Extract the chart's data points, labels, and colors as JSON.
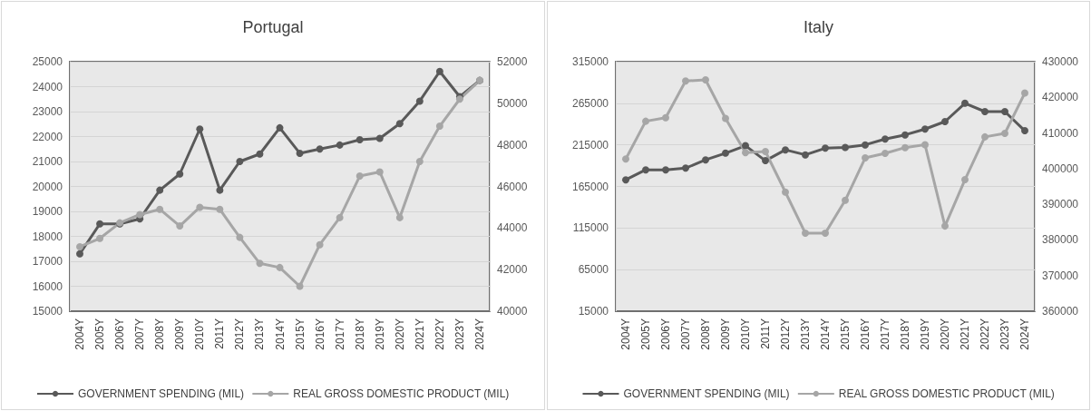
{
  "chart_data": [
    {
      "type": "line",
      "title": "Portugal",
      "categories": [
        "2004Y",
        "2005Y",
        "2006Y",
        "2007Y",
        "2008Y",
        "2009Y",
        "2010Y",
        "2011Y",
        "2012Y",
        "2013Y",
        "2014Y",
        "2015Y",
        "2016Y",
        "2017Y",
        "2018Y",
        "2019Y",
        "2020Y",
        "2021Y",
        "2022Y",
        "2023Y",
        "2024Y"
      ],
      "series": [
        {
          "name": "GOVERNMENT SPENDING (MIL)",
          "color": "#595959",
          "values": [
            17300,
            18500,
            18500,
            18700,
            19850,
            20500,
            22300,
            19850,
            21000,
            21300,
            22350,
            21330,
            21500,
            21660,
            21870,
            21930,
            22520,
            23420,
            24610,
            23600,
            24250
          ]
        },
        {
          "name": "REAL GROSS DOMESTIC PRODUCT (MIL)",
          "color": "#a6a6a6",
          "axis": "y2",
          "values": [
            43100,
            43500,
            44250,
            44650,
            44900,
            44100,
            45000,
            44900,
            43550,
            42300,
            42100,
            41200,
            43200,
            44500,
            46500,
            46700,
            44500,
            47200,
            48900,
            50200,
            51100
          ]
        }
      ],
      "ylim": [
        15000,
        25000
      ],
      "yticks": [
        15000,
        16000,
        17000,
        18000,
        19000,
        20000,
        21000,
        22000,
        23000,
        24000,
        25000
      ],
      "y2lim": [
        40000,
        52000
      ],
      "y2ticks": [
        40000,
        42000,
        44000,
        46000,
        48000,
        50000,
        52000
      ],
      "grid": "y",
      "legend": "bottom",
      "marker": "circle",
      "line_style": "solid"
    },
    {
      "type": "line",
      "title": "Italy",
      "categories": [
        "2004Y",
        "2005Y",
        "2006Y",
        "2007Y",
        "2008Y",
        "2009Y",
        "2010Y",
        "2011Y",
        "2012Y",
        "2013Y",
        "2014Y",
        "2015Y",
        "2016Y",
        "2017Y",
        "2018Y",
        "2019Y",
        "2020Y",
        "2021Y",
        "2022Y",
        "2023Y",
        "2024Y"
      ],
      "series": [
        {
          "name": "GOVERNMENT SPENDING (MIL)",
          "color": "#595959",
          "values": [
            173000,
            185000,
            185000,
            187000,
            197000,
            205000,
            214000,
            196000,
            209000,
            203000,
            211000,
            212000,
            215000,
            222000,
            227000,
            234000,
            243000,
            265000,
            255000,
            255000,
            232000
          ]
        },
        {
          "name": "REAL GROSS DOMESTIC PRODUCT (MIL)",
          "color": "#a6a6a6",
          "axis": "y2",
          "values": [
            402700,
            413300,
            414300,
            424600,
            424900,
            414100,
            404500,
            404800,
            393400,
            381900,
            381900,
            391100,
            403000,
            404300,
            405900,
            406700,
            383900,
            396900,
            408900,
            409900,
            421200
          ]
        }
      ],
      "ylim": [
        15000,
        315000
      ],
      "yticks": [
        15000,
        65000,
        115000,
        165000,
        215000,
        265000,
        315000
      ],
      "y2lim": [
        360000,
        430000
      ],
      "y2ticks": [
        360000,
        370000,
        380000,
        390000,
        400000,
        410000,
        420000,
        430000
      ],
      "grid": "y",
      "legend": "bottom",
      "marker": "circle",
      "line_style": "solid"
    }
  ]
}
